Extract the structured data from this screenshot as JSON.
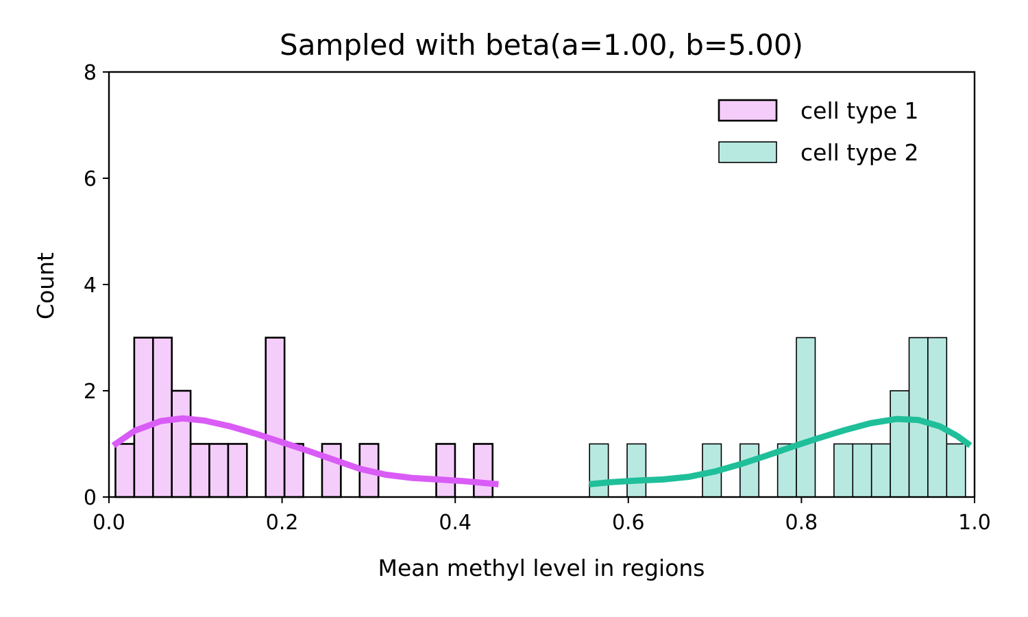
{
  "chart_data": {
    "type": "bar",
    "title": "Sampled with beta(a=1.00, b=5.00)",
    "xlabel": "Mean methyl level in regions",
    "ylabel": "Count",
    "xlim": [
      0.0,
      1.0
    ],
    "ylim": [
      0,
      8
    ],
    "xticks": [
      "0.0",
      "0.2",
      "0.4",
      "0.6",
      "0.8",
      "1.0"
    ],
    "yticks": [
      "0",
      "2",
      "4",
      "6",
      "8"
    ],
    "bin_width": 0.0217,
    "legend_position": "top-right",
    "grid": false,
    "series": [
      {
        "name": "cell type 1",
        "fill": "#f5cdfb",
        "edge": "#000000",
        "kde_color": "#d95cf6",
        "bins": [
          {
            "x": 0.0075,
            "count": 1
          },
          {
            "x": 0.0292,
            "count": 3
          },
          {
            "x": 0.0509,
            "count": 3
          },
          {
            "x": 0.0726,
            "count": 2
          },
          {
            "x": 0.0943,
            "count": 1
          },
          {
            "x": 0.116,
            "count": 1
          },
          {
            "x": 0.1377,
            "count": 1
          },
          {
            "x": 0.1811,
            "count": 3
          },
          {
            "x": 0.2028,
            "count": 1
          },
          {
            "x": 0.2462,
            "count": 1
          },
          {
            "x": 0.2896,
            "count": 1
          },
          {
            "x": 0.3781,
            "count": 1
          },
          {
            "x": 0.4215,
            "count": 1
          }
        ],
        "kde": [
          [
            0.005,
            0.97
          ],
          [
            0.03,
            1.25
          ],
          [
            0.06,
            1.43
          ],
          [
            0.085,
            1.48
          ],
          [
            0.11,
            1.44
          ],
          [
            0.14,
            1.33
          ],
          [
            0.17,
            1.19
          ],
          [
            0.2,
            1.03
          ],
          [
            0.23,
            0.87
          ],
          [
            0.26,
            0.7
          ],
          [
            0.29,
            0.53
          ],
          [
            0.32,
            0.42
          ],
          [
            0.35,
            0.36
          ],
          [
            0.38,
            0.33
          ],
          [
            0.41,
            0.3
          ],
          [
            0.45,
            0.24
          ]
        ]
      },
      {
        "name": "cell type 2",
        "fill": "#b8e9e1",
        "edge": "#000000",
        "kde_color": "#1fbf9a",
        "bins": [
          {
            "x": 0.5552,
            "count": 1
          },
          {
            "x": 0.5986,
            "count": 1
          },
          {
            "x": 0.6857,
            "count": 1
          },
          {
            "x": 0.7291,
            "count": 1
          },
          {
            "x": 0.7725,
            "count": 1
          },
          {
            "x": 0.7942,
            "count": 3
          },
          {
            "x": 0.8376,
            "count": 1
          },
          {
            "x": 0.8593,
            "count": 1
          },
          {
            "x": 0.881,
            "count": 1
          },
          {
            "x": 0.9027,
            "count": 2
          },
          {
            "x": 0.9244,
            "count": 3
          },
          {
            "x": 0.9461,
            "count": 3
          },
          {
            "x": 0.9678,
            "count": 1
          }
        ],
        "kde": [
          [
            0.555,
            0.24
          ],
          [
            0.58,
            0.28
          ],
          [
            0.61,
            0.31
          ],
          [
            0.64,
            0.33
          ],
          [
            0.67,
            0.38
          ],
          [
            0.7,
            0.48
          ],
          [
            0.73,
            0.62
          ],
          [
            0.76,
            0.78
          ],
          [
            0.79,
            0.95
          ],
          [
            0.82,
            1.11
          ],
          [
            0.85,
            1.26
          ],
          [
            0.88,
            1.39
          ],
          [
            0.91,
            1.47
          ],
          [
            0.935,
            1.45
          ],
          [
            0.96,
            1.33
          ],
          [
            0.98,
            1.15
          ],
          [
            0.995,
            0.97
          ]
        ]
      }
    ]
  }
}
